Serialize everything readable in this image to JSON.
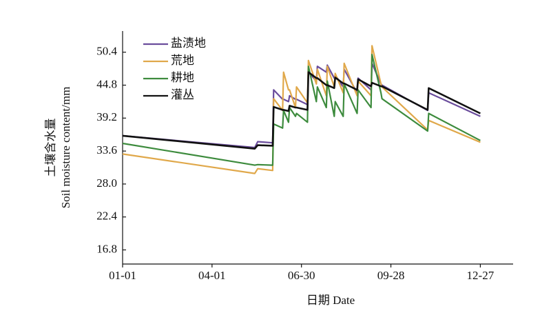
{
  "chart_data": {
    "type": "line",
    "xlabel": "日期 Date",
    "ylabel": [
      "土壤含水量",
      "Soil moisture content/mm"
    ],
    "x": [
      0,
      133,
      136,
      151,
      152,
      161,
      162,
      167,
      168,
      174,
      175,
      186,
      187,
      195,
      196,
      205,
      206,
      213,
      214,
      222,
      223,
      236,
      237,
      250,
      251,
      260,
      261,
      307,
      308,
      360
    ],
    "xlim": [
      0,
      393
    ],
    "xticks": [
      {
        "value": 0,
        "label": "01-01"
      },
      {
        "value": 90,
        "label": "04-01"
      },
      {
        "value": 180,
        "label": "06-30"
      },
      {
        "value": 270,
        "label": "09-28"
      },
      {
        "value": 360,
        "label": "12-27"
      }
    ],
    "ylim": [
      14.4,
      54
    ],
    "yticks": [
      16.8,
      22.4,
      {
        "value": 28,
        "label": "28.0"
      },
      33.6,
      39.2,
      44.8,
      50.4
    ],
    "legend": "upper left",
    "series": [
      {
        "name": "盐渍地",
        "color": "#6a4c9c",
        "values": [
          36.2,
          34.2,
          35.2,
          35.0,
          44.0,
          42.4,
          42.4,
          42.0,
          43.0,
          42.4,
          42.4,
          41.5,
          47.0,
          45.5,
          48.0,
          47.0,
          48.2,
          46.0,
          46.5,
          44.5,
          47.5,
          43.5,
          46.0,
          44.0,
          48.5,
          45.0,
          44.8,
          40.5,
          43.5,
          39.5
        ]
      },
      {
        "name": "荒地",
        "color": "#e0a84a",
        "values": [
          33.1,
          29.8,
          30.6,
          30.3,
          42.5,
          40.5,
          47.0,
          44.0,
          44.0,
          41.0,
          44.5,
          41.8,
          49.0,
          45.0,
          47.5,
          43.0,
          48.0,
          44.5,
          46.8,
          43.5,
          48.5,
          43.0,
          45.5,
          43.0,
          51.5,
          45.0,
          44.5,
          37.2,
          38.8,
          35.1
        ]
      },
      {
        "name": "耕地",
        "color": "#3d8b3d",
        "values": [
          34.9,
          31.2,
          31.3,
          31.2,
          38.2,
          37.5,
          40.5,
          38.5,
          41.0,
          39.5,
          40.0,
          38.5,
          48.0,
          42.0,
          44.5,
          41.0,
          45.5,
          39.5,
          42.0,
          39.5,
          45.0,
          40.0,
          44.0,
          41.0,
          50.0,
          43.5,
          42.5,
          37.0,
          40.0,
          35.4
        ]
      },
      {
        "name": "灌丛",
        "color": "#111111",
        "values": [
          36.2,
          34.0,
          34.6,
          34.5,
          41.1,
          40.6,
          40.6,
          40.4,
          41.3,
          41.0,
          41.0,
          40.6,
          47.0,
          46.0,
          46.0,
          44.8,
          44.8,
          44.3,
          46.1,
          45.1,
          45.1,
          44.0,
          45.8,
          44.6,
          45.2,
          44.6,
          44.6,
          40.6,
          44.3,
          40.0
        ]
      }
    ]
  }
}
